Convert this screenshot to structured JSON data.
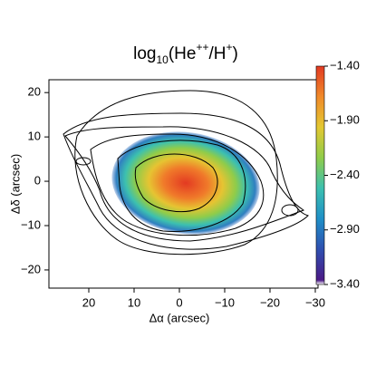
{
  "chart_data": {
    "type": "image",
    "title": [
      {
        "text": "log"
      },
      {
        "text": "10",
        "script": "sub"
      },
      {
        "text": "(He"
      },
      {
        "text": "++",
        "script": "super"
      },
      {
        "text": "/H"
      },
      {
        "text": "+",
        "script": "super"
      },
      {
        "text": ")"
      }
    ],
    "x_label": "Δα (arcsec)",
    "y_label": "Δδ (arcsec)",
    "xlim": [
      28.8,
      -30.6
    ],
    "ylim": [
      -24.1,
      22.9
    ],
    "xticks": [
      20,
      10,
      0,
      {
        "value": -10,
        "label": "−10"
      },
      {
        "value": -20,
        "label": "−20"
      },
      {
        "value": -30,
        "label": "−30"
      }
    ],
    "yticks": [
      {
        "value": -20,
        "label": "−20"
      },
      {
        "value": -10,
        "label": "−10"
      },
      0,
      10,
      20
    ],
    "colorbar": {
      "clim": [
        -3.4,
        -1.4
      ],
      "ticks": [
        {
          "value": -1.4,
          "label": "−1.40"
        },
        {
          "value": -1.9,
          "label": "−1.90"
        },
        {
          "value": -2.4,
          "label": "−2.40"
        },
        {
          "value": -2.9,
          "label": "−2.90"
        },
        {
          "value": -3.4,
          "label": "−3.40"
        }
      ],
      "colors": [
        "#ffffff",
        "#4b1a86",
        "#2f4fb0",
        "#1f8fc7",
        "#3cc0b0",
        "#8fcc4a",
        "#e3c832",
        "#f08a2a",
        "#e23a22"
      ]
    }
  }
}
